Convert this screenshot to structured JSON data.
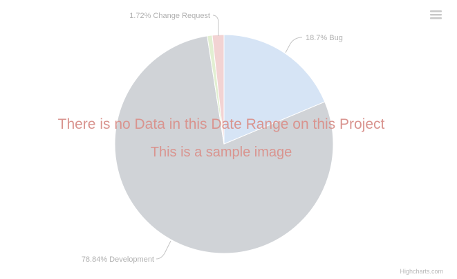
{
  "chart_data": {
    "type": "pie",
    "title": "",
    "slices": [
      {
        "name": "Bug",
        "percent": 18.7,
        "label": "18.7% Bug",
        "color": "#d6e4f5"
      },
      {
        "name": "Development",
        "percent": 78.84,
        "label": "78.84% Development",
        "color": "#d0d3d7"
      },
      {
        "name": "",
        "percent": 0.74,
        "label": "",
        "color": "#e2efd2"
      },
      {
        "name": "Change Request",
        "percent": 1.72,
        "label": "1.72% Change Request",
        "color": "#f2d3d3"
      }
    ]
  },
  "overlay": {
    "line1": "There is no Data in this Date Range on this Project",
    "line2": "This is a sample image"
  },
  "credits": "Highcharts.com",
  "menu": {
    "icon": "hamburger-menu-icon"
  }
}
